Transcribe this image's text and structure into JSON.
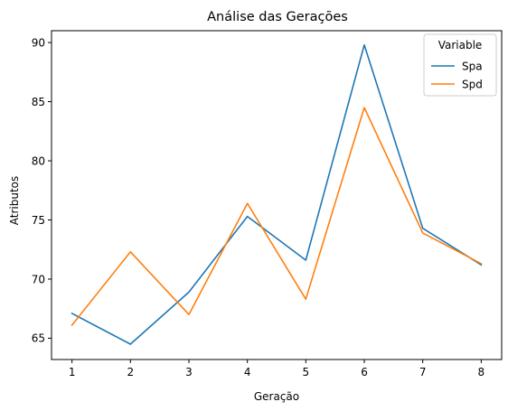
{
  "chart_data": {
    "type": "line",
    "title": "Análise das Gerações",
    "xlabel": "Geração",
    "ylabel": "Atributos",
    "x": [
      1,
      2,
      3,
      4,
      5,
      6,
      7,
      8
    ],
    "xlim": [
      0.65,
      8.35
    ],
    "ylim": [
      63.2,
      91.0
    ],
    "xticks": [
      "1",
      "2",
      "3",
      "4",
      "5",
      "6",
      "7",
      "8"
    ],
    "yticks": [
      "65",
      "70",
      "75",
      "80",
      "85",
      "90"
    ],
    "grid": false,
    "legend": {
      "title": "Variable",
      "placement": "top-right"
    },
    "series": [
      {
        "name": "Spa",
        "color": "#1f77b4",
        "values": [
          67.1,
          64.5,
          68.9,
          75.3,
          71.6,
          89.8,
          74.3,
          71.2
        ]
      },
      {
        "name": "Spd",
        "color": "#ff7f0e",
        "values": [
          66.1,
          72.3,
          67.0,
          76.4,
          68.3,
          84.5,
          73.9,
          71.3
        ]
      }
    ]
  }
}
